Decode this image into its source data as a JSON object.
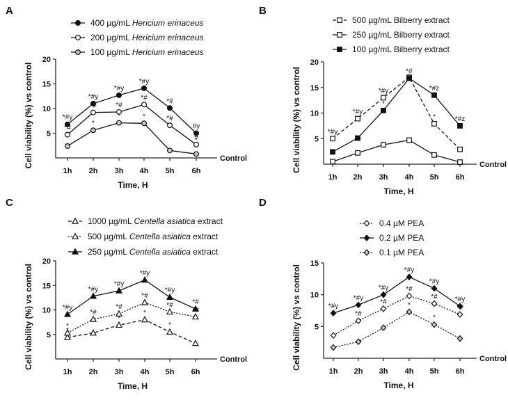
{
  "chart_data": [
    {
      "panel": "A",
      "type": "line",
      "categories": [
        "1h",
        "2h",
        "3h",
        "4h",
        "5h",
        "6h"
      ],
      "baseline_label": "Control",
      "xlabel": "Time, H",
      "ylabel": "Cell viability (%) vs control",
      "ylim": [
        0,
        20
      ],
      "yticks": [
        5,
        10,
        15,
        20
      ],
      "series": [
        {
          "name": "400 µg/mL ",
          "name_italic": "Hericium erinaceus",
          "marker": "filled-circle",
          "line": "solid",
          "values": [
            6.8,
            11.0,
            12.7,
            14.1,
            10.1,
            5.0
          ],
          "annotations": [
            "*#y",
            "*#y",
            "*#y",
            "*#y",
            "*#",
            "#y"
          ]
        },
        {
          "name": "200 µg/mL ",
          "name_italic": "Hericium erinaceus",
          "marker": "open-circle",
          "line": "solid",
          "values": [
            4.7,
            9.2,
            9.3,
            10.8,
            6.6,
            2.7
          ],
          "annotations": [
            "*#",
            "*#",
            "*#",
            "*#",
            "*#",
            "#"
          ]
        },
        {
          "name": "100 µg/mL ",
          "name_italic": "Hericium erinaceus",
          "marker": "gray-circle",
          "line": "solid",
          "values": [
            2.4,
            5.6,
            7.1,
            7.0,
            1.5,
            0.8
          ],
          "annotations": [
            "",
            "*",
            "*",
            "*",
            "",
            ""
          ]
        }
      ]
    },
    {
      "panel": "B",
      "type": "line",
      "categories": [
        "1h",
        "2h",
        "3h",
        "4h",
        "5h",
        "6h"
      ],
      "baseline_label": "Control",
      "xlabel": "Time, H",
      "ylabel": "Cell viability (%) vs control",
      "ylim": [
        0,
        20
      ],
      "yticks": [
        5,
        10,
        15,
        20
      ],
      "series": [
        {
          "name": "500 µg/mL Bilberry extract",
          "name_italic": "",
          "marker": "open-square",
          "line": "dashed",
          "values": [
            5.0,
            8.9,
            13.0,
            17.0,
            7.9,
            2.9
          ],
          "annotations": [
            "*#y",
            "*#y",
            "*#y",
            "",
            "*",
            ""
          ]
        },
        {
          "name": "250 µg/mL Bilberry extract",
          "name_italic": "",
          "marker": "open-square",
          "line": "solid",
          "values": [
            0.5,
            2.2,
            3.8,
            4.7,
            1.8,
            0.4
          ],
          "annotations": [
            "",
            "",
            "",
            "",
            "",
            ""
          ]
        },
        {
          "name": "100 µg/mL Bilberry extract",
          "name_italic": "",
          "marker": "filled-square",
          "line": "solid",
          "values": [
            2.4,
            5.1,
            10.5,
            16.8,
            13.5,
            7.5
          ],
          "annotations": [
            "",
            "",
            "*",
            "*#",
            "*#z",
            "*#z"
          ]
        }
      ]
    },
    {
      "panel": "C",
      "type": "line",
      "categories": [
        "1h",
        "2h",
        "3h",
        "4h",
        "5h",
        "6h"
      ],
      "baseline_label": "Control",
      "xlabel": "Time, H",
      "ylabel": "Cell viability (%) vs control",
      "ylim": [
        0,
        20
      ],
      "yticks": [
        5,
        10,
        15,
        20
      ],
      "series": [
        {
          "name": "1000 µg/mL ",
          "name_italic": "Centella asiatica",
          "name_suffix": " extract",
          "marker": "open-triangle",
          "line": "dashed",
          "values": [
            4.4,
            5.3,
            6.9,
            8.0,
            5.5,
            3.2
          ],
          "annotations": [
            "*",
            "",
            "*",
            "*",
            "*",
            ""
          ]
        },
        {
          "name": "500 µg/mL ",
          "name_italic": "Centella asiatica",
          "name_suffix": " extract",
          "marker": "open-triangle",
          "line": "dotted",
          "values": [
            5.3,
            8.1,
            9.2,
            11.5,
            9.6,
            8.6
          ],
          "annotations": [
            "*",
            "*#",
            "*#",
            "*#",
            "*#",
            "*#"
          ]
        },
        {
          "name": "250 µg/mL ",
          "name_italic": "Centella asiatica",
          "name_suffix": " extract",
          "marker": "filled-triangle",
          "line": "solid",
          "values": [
            9.1,
            12.8,
            13.9,
            16.1,
            12.6,
            10.2
          ],
          "annotations": [
            "*#y",
            "*#y",
            "*#y",
            "*#y",
            "*#y",
            "*#"
          ]
        }
      ]
    },
    {
      "panel": "D",
      "type": "line",
      "categories": [
        "1h",
        "2h",
        "3h",
        "4h",
        "5h",
        "6h"
      ],
      "baseline_label": "Control",
      "xlabel": "Time, H",
      "ylabel": "Cell viability (%) vs control",
      "ylim": [
        0,
        15
      ],
      "yticks": [
        5,
        10,
        15
      ],
      "series": [
        {
          "name": "0.4 µM PEA",
          "name_italic": "",
          "marker": "open-diamond",
          "line": "dotted",
          "values": [
            3.6,
            5.9,
            7.8,
            9.8,
            8.6,
            6.9
          ],
          "annotations": [
            "",
            "*#",
            "*#",
            "*#",
            "*#",
            "*#"
          ]
        },
        {
          "name": "0.2 µM PEA",
          "name_italic": "",
          "marker": "filled-diamond",
          "line": "solid",
          "values": [
            7.1,
            8.4,
            10.0,
            12.8,
            11.0,
            8.2
          ],
          "annotations": [
            "*#y",
            "*#y",
            "*#y",
            "*#y",
            "*#y",
            "*#y"
          ]
        },
        {
          "name": "0.1 µM PEA",
          "name_italic": "",
          "marker": "gray-diamond",
          "line": "dotted",
          "values": [
            1.7,
            2.6,
            4.8,
            7.3,
            5.3,
            3.1
          ],
          "annotations": [
            "",
            "",
            "",
            "*",
            "*",
            ""
          ]
        }
      ]
    }
  ]
}
